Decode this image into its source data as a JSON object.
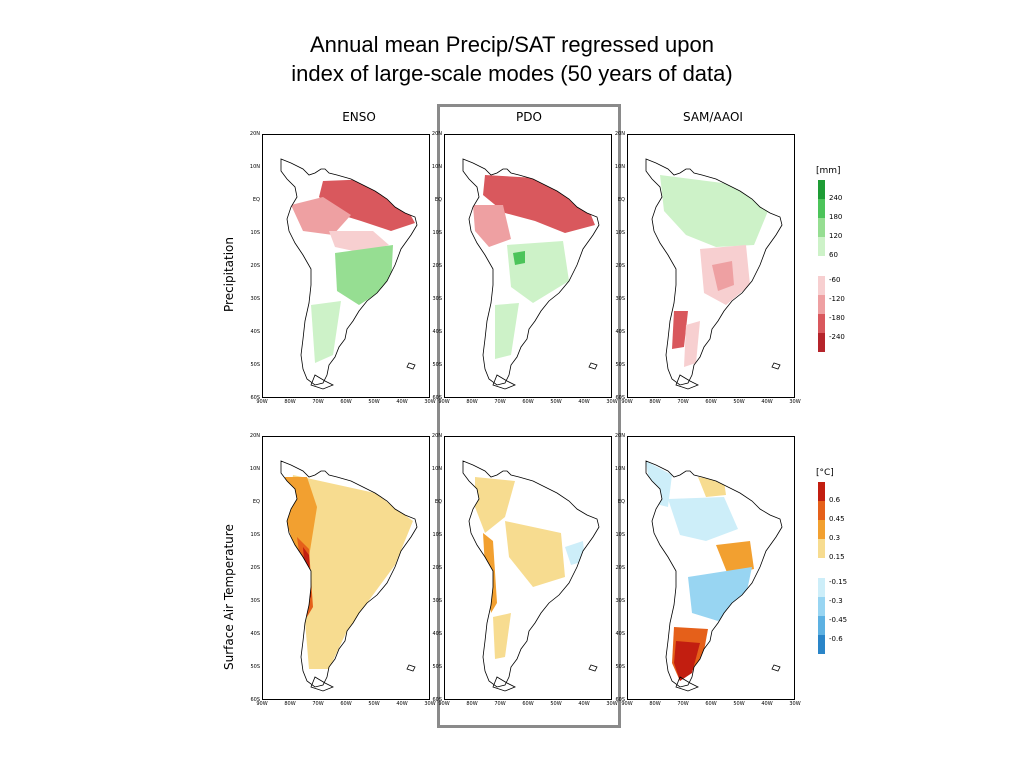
{
  "title": {
    "line1": "Annual mean Precip/SAT regressed upon",
    "line2": "index of large-scale modes (50 years of data)"
  },
  "columns": [
    "ENSO",
    "PDO",
    "SAM/AAOI"
  ],
  "rows": [
    "Precipitation",
    "Surface Air Temperature"
  ],
  "y_ticks": [
    "20N",
    "10N",
    "EQ",
    "10S",
    "20S",
    "30S",
    "40S",
    "50S",
    "60S"
  ],
  "x_ticks": [
    "90W",
    "80W",
    "70W",
    "60W",
    "50W",
    "40W",
    "30W"
  ],
  "highlight_column": "PDO",
  "legends": {
    "precip": {
      "unit": "[mm]",
      "labels": [
        "240",
        "180",
        "120",
        "60",
        "-60",
        "-120",
        "-180",
        "-240"
      ],
      "colors": [
        "#1e9c35",
        "#4cc45a",
        "#96de92",
        "#cdf2c8",
        "#f7cfd0",
        "#eea0a2",
        "#d9585d",
        "#b5242b"
      ]
    },
    "temp": {
      "unit": "[°C]",
      "labels": [
        "0.6",
        "0.45",
        "0.3",
        "0.15",
        "-0.15",
        "-0.3",
        "-0.45",
        "-0.6"
      ],
      "colors": [
        "#c21e10",
        "#e5601a",
        "#f2a030",
        "#f7dc90",
        "#cdeef9",
        "#98d5f2",
        "#5db1e2",
        "#2a85c8"
      ]
    }
  },
  "colors": {
    "highlight_border": "#8a8a8a",
    "coastline": "#000000"
  }
}
